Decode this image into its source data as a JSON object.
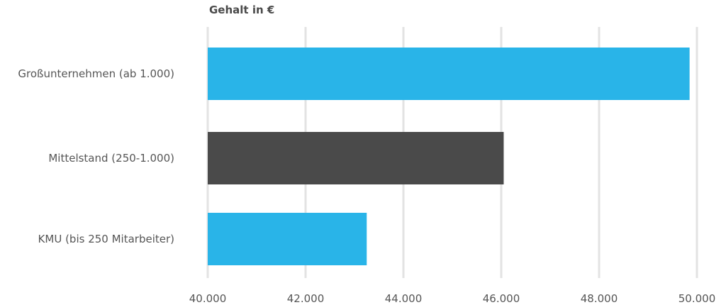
{
  "chart_data": {
    "type": "bar",
    "orientation": "horizontal",
    "title": "",
    "xlabel": "Gehalt in €",
    "ylabel": "",
    "categories": [
      "Großunternehmen (ab 1.000)",
      "Mittelstand (250-1.000)",
      "KMU (bis 250 Mitarbeiter)"
    ],
    "values": [
      49850,
      46050,
      43250
    ],
    "colors": [
      "#29b4e8",
      "#4a4a4a",
      "#29b4e8"
    ],
    "xlim": [
      40000,
      50000
    ],
    "xticks": [
      40000,
      42000,
      44000,
      46000,
      48000,
      50000
    ],
    "xtick_labels": [
      "40.000",
      "42.000",
      "44.000",
      "46.000",
      "48.000",
      "50.000"
    ],
    "grid": true,
    "legend": "none"
  }
}
